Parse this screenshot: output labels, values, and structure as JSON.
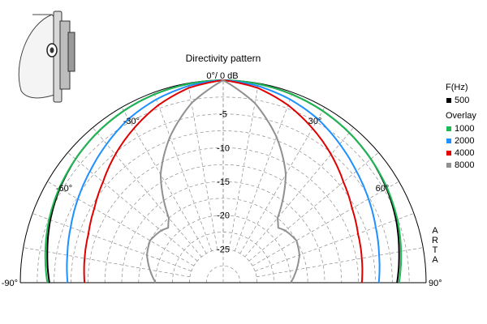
{
  "chart_data": {
    "type": "polar",
    "title": "Directivity pattern",
    "top_label": "0°/ 0 dB",
    "watermark": "ARTA",
    "radial_unit": "dB",
    "radial_range": [
      -30,
      0
    ],
    "radial_ticks": [
      {
        "value": -5,
        "label": "-5"
      },
      {
        "value": -10,
        "label": "-10"
      },
      {
        "value": -15,
        "label": "-15"
      },
      {
        "value": -20,
        "label": "-20"
      },
      {
        "value": -25,
        "label": "-25"
      }
    ],
    "angle_range": [
      -90,
      90
    ],
    "angle_labels": [
      {
        "angle": -90,
        "label": "-90°"
      },
      {
        "angle": -60,
        "label": "-60°"
      },
      {
        "angle": -30,
        "label": "-30°"
      },
      {
        "angle": 30,
        "label": "30°"
      },
      {
        "angle": 60,
        "label": "60°"
      },
      {
        "angle": 90,
        "label": "90°"
      }
    ],
    "grid": true,
    "legend_position": "right",
    "legend": {
      "header": "F(Hz)",
      "overlay_header": "Overlay",
      "entries": [
        {
          "name": "500",
          "color": "#000000"
        },
        {
          "name": "1000",
          "color": "#1db954"
        },
        {
          "name": "2000",
          "color": "#1e90ff"
        },
        {
          "name": "4000",
          "color": "#e00000"
        },
        {
          "name": "8000",
          "color": "#909090"
        }
      ]
    },
    "series": [
      {
        "name": "500",
        "color": "#000000",
        "points": [
          [
            0,
            0
          ],
          [
            10,
            -0.1
          ],
          [
            20,
            -0.3
          ],
          [
            30,
            -0.6
          ],
          [
            40,
            -1.0
          ],
          [
            50,
            -1.5
          ],
          [
            60,
            -2.1
          ],
          [
            70,
            -2.8
          ],
          [
            80,
            -3.6
          ],
          [
            90,
            -4.3
          ]
        ]
      },
      {
        "name": "1000",
        "color": "#1db954",
        "points": [
          [
            0,
            0
          ],
          [
            10,
            -0.1
          ],
          [
            20,
            -0.3
          ],
          [
            30,
            -0.6
          ],
          [
            40,
            -1.0
          ],
          [
            50,
            -1.5
          ],
          [
            60,
            -2.0
          ],
          [
            70,
            -2.6
          ],
          [
            80,
            -3.3
          ],
          [
            90,
            -4.0
          ]
        ]
      },
      {
        "name": "2000",
        "color": "#1e90ff",
        "points": [
          [
            0,
            0
          ],
          [
            10,
            -0.4
          ],
          [
            20,
            -1.1
          ],
          [
            30,
            -2.0
          ],
          [
            40,
            -3.2
          ],
          [
            50,
            -4.3
          ],
          [
            60,
            -5.2
          ],
          [
            70,
            -6.0
          ],
          [
            80,
            -6.6
          ],
          [
            90,
            -7.0
          ]
        ]
      },
      {
        "name": "4000",
        "color": "#e00000",
        "points": [
          [
            0,
            0
          ],
          [
            10,
            -0.7
          ],
          [
            20,
            -2.0
          ],
          [
            30,
            -3.6
          ],
          [
            40,
            -5.2
          ],
          [
            50,
            -6.8
          ],
          [
            60,
            -8.0
          ],
          [
            70,
            -8.8
          ],
          [
            80,
            -9.2
          ],
          [
            90,
            -9.5
          ]
        ]
      },
      {
        "name": "8000",
        "color": "#909090",
        "points": [
          [
            0,
            0
          ],
          [
            10,
            -3
          ],
          [
            20,
            -7
          ],
          [
            30,
            -11.5
          ],
          [
            35,
            -14.5
          ],
          [
            40,
            -17.5
          ],
          [
            45,
            -18.5
          ],
          [
            50,
            -18
          ],
          [
            60,
            -17.5
          ],
          [
            70,
            -18
          ],
          [
            80,
            -19
          ],
          [
            90,
            -20
          ]
        ]
      }
    ]
  }
}
